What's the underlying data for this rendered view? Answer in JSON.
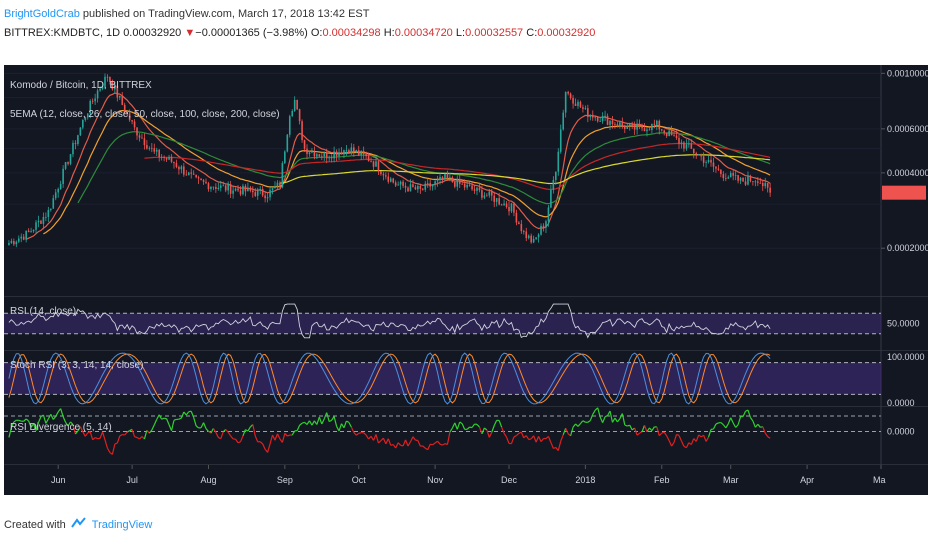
{
  "header": {
    "author": "BrightGoldCrab",
    "published_text": "published on TradingView.com, March 17, 2018 13:42 EST",
    "symbol": "BITTREX:KMDBTC, 1D",
    "last": "0.00032920",
    "change": "−0.00001365 (−3.98%)",
    "o_label": "O:",
    "o": "0.00034298",
    "h_label": "H:",
    "h": "0.00034720",
    "l_label": "L:",
    "l": "0.00032557",
    "c_label": "C:",
    "c": "0.00032920"
  },
  "footer": {
    "created_with": "Created with",
    "brand": "TradingView"
  },
  "colors": {
    "background": "#131722",
    "up_candle": "#26a69a",
    "down_candle": "#ef5350",
    "ema12": "#e05c4a",
    "ema26": "#f0a030",
    "ema50": "#2e8b3a",
    "ema100": "#c62828",
    "ema200": "#d8d832",
    "rsi_line": "#cfd2dc",
    "stoch_k": "#4a90e2",
    "stoch_d": "#ff8a2a",
    "panel_fill": "#3b2a6e",
    "div_up": "#2fd22f",
    "div_down": "#e02020",
    "logo": "#2196f3"
  },
  "chart_data": [
    {
      "type": "candlestick",
      "title": "Komodo / Bitcoin, 1D, BITTREX",
      "subtitle": "5EMA (12, close, 26, close, 50, close, 100, close, 200, close)",
      "ylim": [
        0.00013,
        0.00106
      ],
      "y_scale": "log",
      "y_ticks": [
        "0.00100000",
        "0.00060000",
        "0.00040000",
        "0.00020000"
      ],
      "x_ticks": [
        "Jun",
        "Jul",
        "Aug",
        "Sep",
        "Oct",
        "Nov",
        "Dec",
        "2018",
        "Feb",
        "Mar",
        "Apr",
        "Ma"
      ],
      "series_close": [
        {
          "x": "2017-05-12",
          "y": 0.00021
        },
        {
          "x": "2017-05-20",
          "y": 0.00023
        },
        {
          "x": "2017-05-28",
          "y": 0.00028
        },
        {
          "x": "2017-06-05",
          "y": 0.00045
        },
        {
          "x": "2017-06-12",
          "y": 0.00068
        },
        {
          "x": "2017-06-17",
          "y": 0.00085
        },
        {
          "x": "2017-06-21",
          "y": 0.00098
        },
        {
          "x": "2017-06-25",
          "y": 0.00082
        },
        {
          "x": "2017-07-02",
          "y": 0.0006
        },
        {
          "x": "2017-07-10",
          "y": 0.00048
        },
        {
          "x": "2017-07-18",
          "y": 0.00044
        },
        {
          "x": "2017-07-27",
          "y": 0.00037
        },
        {
          "x": "2017-08-06",
          "y": 0.00035
        },
        {
          "x": "2017-08-15",
          "y": 0.00034
        },
        {
          "x": "2017-08-25",
          "y": 0.00033
        },
        {
          "x": "2017-08-30",
          "y": 0.00036
        },
        {
          "x": "2017-09-03",
          "y": 0.0007
        },
        {
          "x": "2017-09-05",
          "y": 0.00078
        },
        {
          "x": "2017-09-09",
          "y": 0.0005
        },
        {
          "x": "2017-09-17",
          "y": 0.00047
        },
        {
          "x": "2017-09-27",
          "y": 0.0005
        },
        {
          "x": "2017-10-06",
          "y": 0.00045
        },
        {
          "x": "2017-10-16",
          "y": 0.00036
        },
        {
          "x": "2017-10-26",
          "y": 0.00034
        },
        {
          "x": "2017-11-05",
          "y": 0.00038
        },
        {
          "x": "2017-11-14",
          "y": 0.00035
        },
        {
          "x": "2017-11-24",
          "y": 0.00032
        },
        {
          "x": "2017-12-02",
          "y": 0.00029
        },
        {
          "x": "2017-12-07",
          "y": 0.00023
        },
        {
          "x": "2017-12-11",
          "y": 0.00021
        },
        {
          "x": "2017-12-16",
          "y": 0.00026
        },
        {
          "x": "2017-12-20",
          "y": 0.00042
        },
        {
          "x": "2017-12-24",
          "y": 0.00085
        },
        {
          "x": "2018-01-01",
          "y": 0.0007
        },
        {
          "x": "2018-01-10",
          "y": 0.00065
        },
        {
          "x": "2018-01-20",
          "y": 0.0006
        },
        {
          "x": "2018-01-30",
          "y": 0.00062
        },
        {
          "x": "2018-02-06",
          "y": 0.00055
        },
        {
          "x": "2018-02-15",
          "y": 0.00048
        },
        {
          "x": "2018-02-25",
          "y": 0.0004
        },
        {
          "x": "2018-03-05",
          "y": 0.00037
        },
        {
          "x": "2018-03-12",
          "y": 0.00038
        },
        {
          "x": "2018-03-17",
          "y": 0.00033
        }
      ],
      "ema_labels": [
        "12",
        "26",
        "50",
        "100",
        "200"
      ]
    },
    {
      "type": "line",
      "title": "RSI (14, close)",
      "ylim": [
        0,
        100
      ],
      "bands": [
        70,
        30
      ],
      "y_ticks": [
        "50.0000"
      ]
    },
    {
      "type": "line",
      "title": "Stoch RSI (3, 3, 14, 14, close)",
      "ylim": [
        0,
        100
      ],
      "bands": [
        80,
        20
      ],
      "y_ticks": [
        "100.0000",
        "0.0000"
      ]
    },
    {
      "type": "line",
      "title": "RSI Divergence (5, 14)",
      "y_ticks": [
        "0.0000"
      ]
    }
  ]
}
